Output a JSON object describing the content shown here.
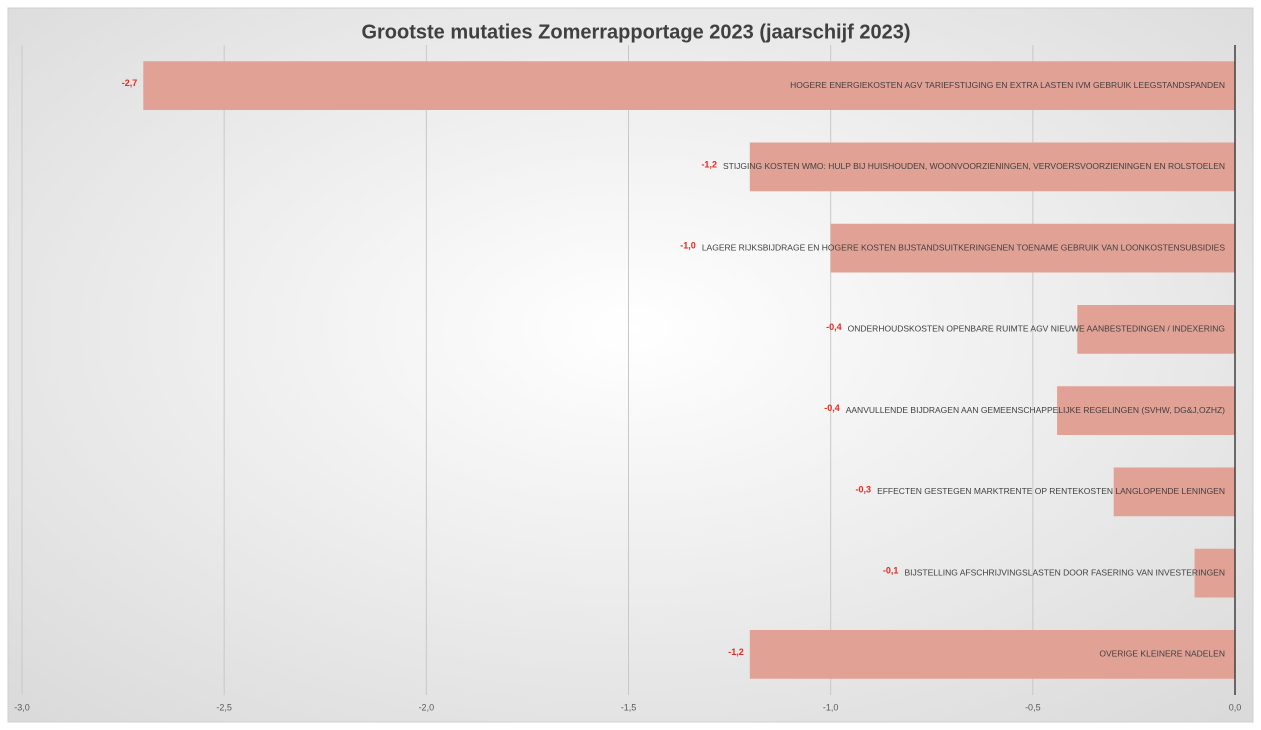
{
  "chart_data": {
    "type": "barh",
    "title": "Grootste mutaties Zomerrapportage 2023 (jaarschijf 2023)",
    "categories": [
      "HOGERE ENERGIEKOSTEN AGV TARIEFSTIJGING EN EXTRA LASTEN IVM GEBRUIK LEEGSTANDSPANDEN",
      "STIJGING KOSTEN WMO: HULP BIJ HUISHOUDEN, WOONVOORZIENINGEN, VERVOERSVOORZIENINGEN EN ROLSTOELEN",
      "LAGERE RIJKSBIJDRAGE EN HOGERE KOSTEN BIJSTANDSUITKERINGENEN TOENAME GEBRUIK VAN LOONKOSTENSUBSIDIES",
      "ONDERHOUDSKOSTEN OPENBARE RUIMTE AGV NIEUWE AANBESTEDINGEN / INDEXERING",
      "AANVULLENDE BIJDRAGEN AAN GEMEENSCHAPPELIJKE REGELINGEN (SVHW, DG&J,OZHZ)",
      "EFFECTEN GESTEGEN MARKTRENTE OP RENTEKOSTEN LANGLOPENDE LENINGEN",
      "BIJSTELLING AFSCHRIJVINGSLASTEN DOOR FASERING VAN INVESTERINGEN",
      "OVERIGE KLEINERE NADELEN"
    ],
    "values": [
      -2.7,
      -1.2,
      -1.0,
      -0.39,
      -0.44,
      -0.3,
      -0.1,
      -1.2
    ],
    "value_labels": [
      "-2,7",
      "-1,2",
      "-1,0",
      "-0,4",
      "-0,4",
      "-0,3",
      "-0,1",
      "-1,2"
    ],
    "color": "#e2a195",
    "label_color": "#e8281e",
    "xlim": [
      -3.0,
      0.0
    ],
    "xticks": [
      {
        "value": -3.0,
        "label": "-3,0"
      },
      {
        "value": -2.5,
        "label": "-2,5"
      },
      {
        "value": -2.0,
        "label": "-2,0"
      },
      {
        "value": -1.5,
        "label": "-1,5"
      },
      {
        "value": -1.0,
        "label": "-1,0"
      },
      {
        "value": -0.5,
        "label": "-0,5"
      },
      {
        "value": 0.0,
        "label": "0,0"
      }
    ],
    "grid": true
  }
}
